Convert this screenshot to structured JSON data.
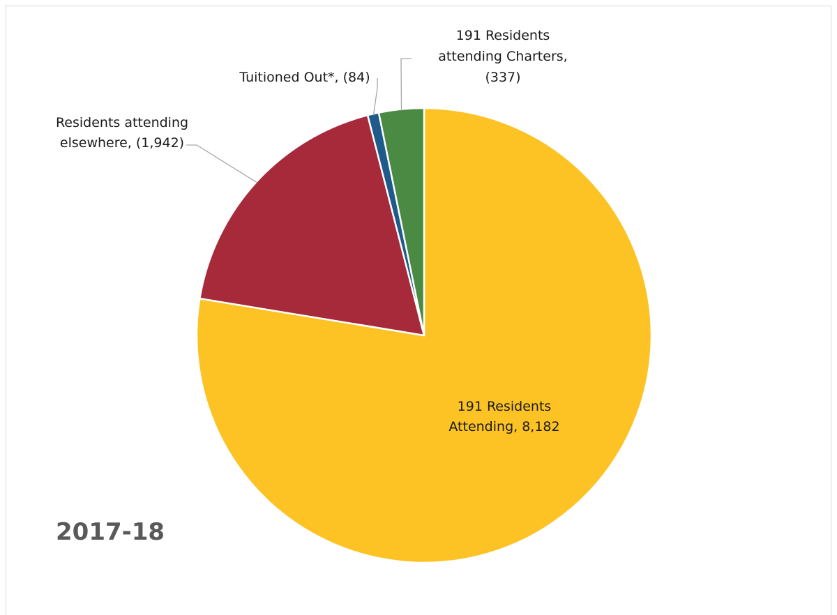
{
  "chart_data": {
    "type": "pie",
    "title": "",
    "year_label": "2017-18",
    "slices": [
      {
        "name": "191 Residents Attending",
        "value": 8182,
        "label_lines": [
          "191 Residents",
          "Attending, 8,182"
        ],
        "color": "#fdc325"
      },
      {
        "name": "Residents attending elsewhere",
        "value": 1942,
        "label_lines": [
          "Residents attending",
          "elsewhere, (1,942)"
        ],
        "color": "#a72a3b"
      },
      {
        "name": "Tuitioned Out*",
        "value": 84,
        "label_lines": [
          "Tuitioned Out*, (84)"
        ],
        "color": "#1f5b8a"
      },
      {
        "name": "191 Residents attending Charters",
        "value": 337,
        "label_lines": [
          "191 Residents",
          "attending Charters,",
          "(337)"
        ],
        "color": "#4a8a43"
      }
    ],
    "start_angle": "12 o'clock",
    "direction": "clockwise",
    "legend": "none",
    "leader_line_color": "#a6a6a6"
  }
}
